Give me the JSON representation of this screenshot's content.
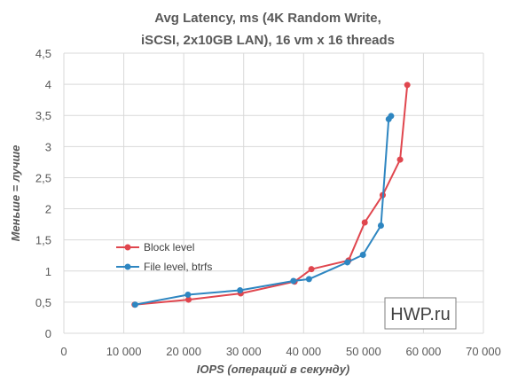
{
  "chart_data": {
    "type": "scatter",
    "title_lines": [
      "Avg Latency, ms (4K Random Write,",
      "iSCSI, 2x10GB LAN), 16 vm x 16 threads"
    ],
    "xlabel": "IOPS (операций в секунду)",
    "ylabel": "Меньше = лучше",
    "xlim": [
      0,
      70000
    ],
    "ylim": [
      0,
      4.5
    ],
    "x_ticks": [
      0,
      10000,
      20000,
      30000,
      40000,
      50000,
      60000,
      70000
    ],
    "x_tick_labels": [
      "0",
      "10 000",
      "20 000",
      "30 000",
      "40 000",
      "50 000",
      "60 000",
      "70 000"
    ],
    "y_ticks": [
      0,
      0.5,
      1,
      1.5,
      2,
      2.5,
      3,
      3.5,
      4,
      4.5
    ],
    "y_tick_labels": [
      "0",
      "0,5",
      "1",
      "1,5",
      "2",
      "2,5",
      "3",
      "3,5",
      "4",
      "4,5"
    ],
    "grid": true,
    "legend_position": "left",
    "series": [
      {
        "name": "Block level",
        "color": "#e0464e",
        "x": [
          11800,
          20800,
          29500,
          38500,
          41300,
          47500,
          50200,
          53200,
          56100,
          57300
        ],
        "y": [
          0.46,
          0.54,
          0.64,
          0.83,
          1.03,
          1.17,
          1.78,
          2.22,
          2.79,
          3.99
        ]
      },
      {
        "name": "File level, btrfs",
        "color": "#2e86c1",
        "x": [
          11900,
          20700,
          29400,
          38300,
          40900,
          47300,
          49900,
          52900,
          54200,
          54600
        ],
        "y": [
          0.46,
          0.62,
          0.69,
          0.84,
          0.87,
          1.14,
          1.26,
          1.73,
          3.44,
          3.49
        ]
      }
    ],
    "watermark": "HWP.ru"
  }
}
